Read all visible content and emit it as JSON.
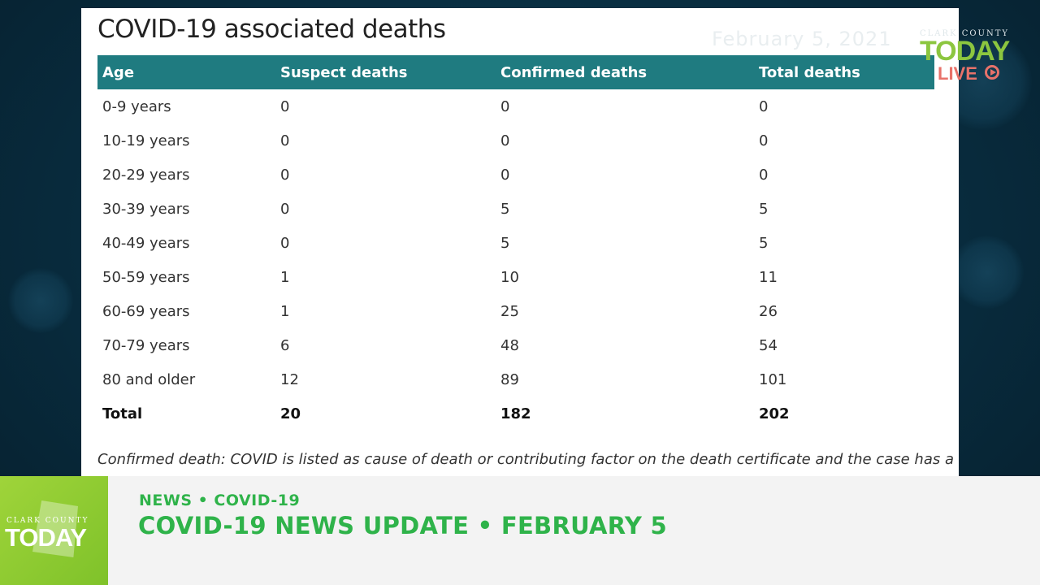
{
  "panel": {
    "title": "COVID-19 associated deaths",
    "date_watermark": "February 5, 2021"
  },
  "table": {
    "headers": [
      "Age",
      "Suspect deaths",
      "Confirmed deaths",
      "Total deaths"
    ],
    "rows": [
      [
        "0-9 years",
        "0",
        "0",
        "0"
      ],
      [
        "10-19 years",
        "0",
        "0",
        "0"
      ],
      [
        "20-29 years",
        "0",
        "0",
        "0"
      ],
      [
        "30-39 years",
        "0",
        "5",
        "5"
      ],
      [
        "40-49 years",
        "0",
        "5",
        "5"
      ],
      [
        "50-59 years",
        "1",
        "10",
        "11"
      ],
      [
        "60-69 years",
        "1",
        "25",
        "26"
      ],
      [
        "70-79 years",
        "6",
        "48",
        "54"
      ],
      [
        "80 and older",
        "12",
        "89",
        "101"
      ]
    ],
    "total": [
      "Total",
      "20",
      "182",
      "202"
    ]
  },
  "footnote": "Confirmed death: COVID is listed as cause of death or contributing factor on the death certificate and the case has a",
  "corner_logo": {
    "county": "CLARK COUNTY",
    "brand": "TODAY",
    "live": "LIVE"
  },
  "lower_third": {
    "logo_county": "CLARK COUNTY",
    "logo_brand": "TODAY",
    "kicker": "NEWS • COVID-19",
    "headline": "COVID-19 NEWS UPDATE • FEBRUARY 5"
  },
  "colors": {
    "table_header": "#1f7b80",
    "brand_green": "#2fb34a",
    "logo_green": "#8cc63f",
    "live_red": "#e8726a"
  }
}
